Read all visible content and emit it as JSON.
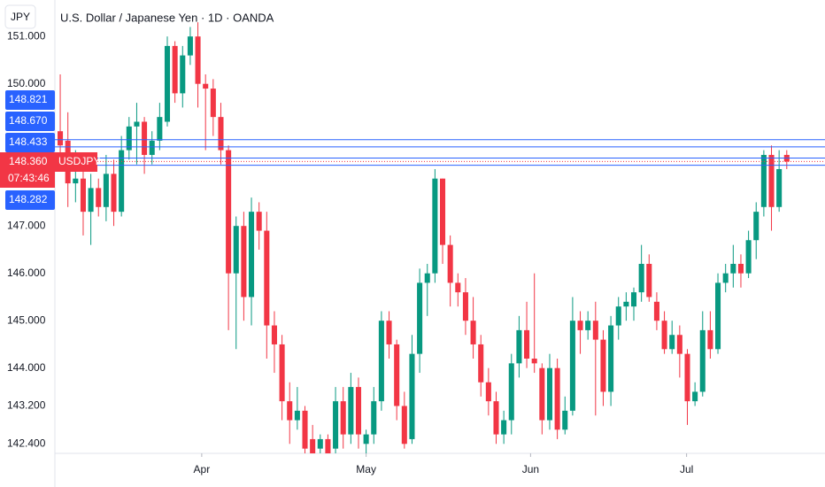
{
  "chart_data": {
    "type": "candlestick",
    "title": "U.S. Dollar / Japanese Yen · 1D · OANDA",
    "currency": "JPY",
    "up_color": "#089981",
    "down_color": "#f23645",
    "line_color": "#2962ff",
    "grid": false,
    "open": [
      149.0,
      148.8,
      147.9,
      148.0,
      147.3,
      147.8,
      147.4,
      148.1,
      147.3,
      148.6,
      149.1,
      149.2,
      148.5,
      148.8,
      149.2,
      150.8,
      149.8,
      150.6,
      151.0,
      150.0,
      149.9,
      149.3,
      148.6,
      146.0,
      147.0,
      145.5,
      147.3,
      146.9,
      144.9,
      144.5,
      143.3,
      142.9,
      143.1,
      142.5,
      142.3,
      142.5,
      142.3,
      143.3,
      142.6,
      143.6,
      142.4,
      142.6,
      143.3,
      145.0,
      144.5,
      143.2,
      142.5,
      144.3,
      145.8,
      146.0,
      148.0,
      146.6,
      145.8,
      145.6,
      145.0,
      144.5,
      143.7,
      143.3,
      142.6,
      142.9,
      144.1,
      144.8,
      144.2,
      144.0,
      142.9,
      144.0,
      142.7,
      143.1,
      145.0,
      144.8,
      145.0,
      144.6,
      143.5,
      144.9,
      145.3,
      145.3,
      145.6,
      146.2,
      145.4,
      145.0,
      144.4,
      144.7,
      144.3,
      143.3,
      143.5,
      144.8,
      144.4,
      145.8,
      146.0,
      146.2,
      146.0,
      146.7,
      147.4,
      148.5,
      147.4,
      148.5
    ],
    "high": [
      150.2,
      149.4,
      148.6,
      148.2,
      148.1,
      148.0,
      148.5,
      148.4,
      148.9,
      149.3,
      149.6,
      149.3,
      149.0,
      149.6,
      151.0,
      150.9,
      150.8,
      151.2,
      151.3,
      150.2,
      150.1,
      149.6,
      148.7,
      147.2,
      147.3,
      147.6,
      147.5,
      147.3,
      145.2,
      144.7,
      143.7,
      143.6,
      143.2,
      142.8,
      142.6,
      142.6,
      143.6,
      143.6,
      143.9,
      143.8,
      142.7,
      143.6,
      145.2,
      145.2,
      144.6,
      143.5,
      144.7,
      146.1,
      146.2,
      148.2,
      148.0,
      146.8,
      146.0,
      145.9,
      145.5,
      144.7,
      144.0,
      143.5,
      143.1,
      144.3,
      145.1,
      145.4,
      146.0,
      144.1,
      144.3,
      144.2,
      143.4,
      145.5,
      145.2,
      145.2,
      145.4,
      144.8,
      145.1,
      145.5,
      145.6,
      145.7,
      146.6,
      146.4,
      145.6,
      145.2,
      145.0,
      144.9,
      144.4,
      143.7,
      145.2,
      145.2,
      146.0,
      146.2,
      146.6,
      146.4,
      146.9,
      147.5,
      148.6,
      148.7,
      148.6,
      148.6
    ],
    "low": [
      148.3,
      147.4,
      147.5,
      146.8,
      146.6,
      147.2,
      147.1,
      147.0,
      147.2,
      148.4,
      148.3,
      148.1,
      148.3,
      148.6,
      149.1,
      149.6,
      149.5,
      150.4,
      149.5,
      148.6,
      148.9,
      148.3,
      144.8,
      144.4,
      145.0,
      144.9,
      146.5,
      144.2,
      143.9,
      142.9,
      142.4,
      142.7,
      142.2,
      142.2,
      142.2,
      142.2,
      142.2,
      142.3,
      142.4,
      142.3,
      142.2,
      142.4,
      143.1,
      144.2,
      142.9,
      142.3,
      142.4,
      143.9,
      145.1,
      145.8,
      146.2,
      145.3,
      145.3,
      144.7,
      144.2,
      143.4,
      143.0,
      142.4,
      142.4,
      142.6,
      143.8,
      144.0,
      143.9,
      142.6,
      142.7,
      142.5,
      142.6,
      143.0,
      144.3,
      144.6,
      143.0,
      143.2,
      143.2,
      144.6,
      145.0,
      145.0,
      145.4,
      145.4,
      144.8,
      144.3,
      144.3,
      143.8,
      142.8,
      143.2,
      143.4,
      144.2,
      144.3,
      145.6,
      145.7,
      145.7,
      145.9,
      146.3,
      147.2,
      146.9,
      147.3,
      148.2
    ],
    "close": [
      148.7,
      147.9,
      148.0,
      147.3,
      147.8,
      147.4,
      148.1,
      147.3,
      148.6,
      149.1,
      149.2,
      148.5,
      148.8,
      149.3,
      150.8,
      149.8,
      150.6,
      151.0,
      150.0,
      149.9,
      149.3,
      148.6,
      146.0,
      147.0,
      145.5,
      147.3,
      146.9,
      144.9,
      144.5,
      143.3,
      142.9,
      143.1,
      142.3,
      142.2,
      142.5,
      142.2,
      143.3,
      142.6,
      143.6,
      142.6,
      142.6,
      143.3,
      145.0,
      144.5,
      143.2,
      142.4,
      144.3,
      145.8,
      146.0,
      148.0,
      146.6,
      145.8,
      145.6,
      145.0,
      144.5,
      143.7,
      143.3,
      142.6,
      142.9,
      144.1,
      144.8,
      144.2,
      144.1,
      142.9,
      144.0,
      142.7,
      143.1,
      145.0,
      144.8,
      145.0,
      144.6,
      143.5,
      144.9,
      145.3,
      145.4,
      145.6,
      146.2,
      145.5,
      145.0,
      144.4,
      144.7,
      144.3,
      143.3,
      143.5,
      144.8,
      144.4,
      145.8,
      146.0,
      146.2,
      146.0,
      146.7,
      147.3,
      148.5,
      147.4,
      148.2,
      148.36
    ],
    "xlim": [
      -0.7,
      100
    ],
    "xticks": [
      {
        "value": 18.5,
        "label": "Apr"
      },
      {
        "value": 40,
        "label": "May"
      },
      {
        "value": 61.5,
        "label": "Jun"
      },
      {
        "value": 81.9,
        "label": "Jul"
      }
    ],
    "ylim": [
      142.2,
      151.77
    ],
    "yticks": [
      {
        "value": 151,
        "label": "151.000"
      },
      {
        "value": 150,
        "label": "150.000"
      },
      {
        "value": 147,
        "label": "147.000"
      },
      {
        "value": 146,
        "label": "146.000"
      },
      {
        "value": 145,
        "label": "145.000"
      },
      {
        "value": 144,
        "label": "144.000"
      },
      {
        "value": 143.2,
        "label": "143.200"
      },
      {
        "value": 142.4,
        "label": "142.400"
      }
    ],
    "price_lines": [
      {
        "value": 148.821,
        "label": "148.821"
      },
      {
        "value": 148.67,
        "label": "148.670"
      },
      {
        "value": 148.433,
        "label": "148.433"
      },
      {
        "value": 148.282,
        "label": "148.282"
      }
    ],
    "current_price": {
      "value": 148.36,
      "label": "148.360",
      "symbol": "USDJPY",
      "countdown": "07:43:46"
    }
  }
}
